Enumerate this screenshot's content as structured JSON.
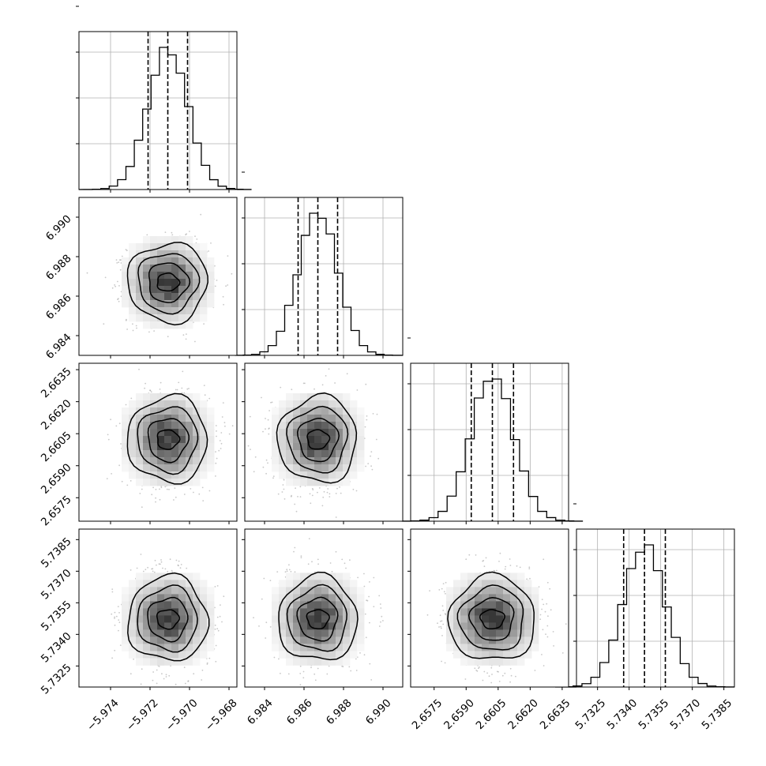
{
  "chart_data": {
    "type": "corner",
    "grid": true,
    "parameters": [
      {
        "median": -5.9711,
        "sigma": 0.00101,
        "range": [
          -5.9756,
          -5.9676
        ],
        "ticks": [
          -5.974,
          -5.972,
          -5.97,
          -5.968
        ],
        "tick_labels": [
          "−5.974",
          "−5.972",
          "−5.970",
          "−5.968"
        ],
        "quantiles": [
          -5.9721,
          -5.9711,
          -5.9701
        ]
      },
      {
        "median": 6.9867,
        "sigma": 0.001,
        "range": [
          6.983,
          6.991
        ],
        "ticks": [
          6.984,
          6.986,
          6.988,
          6.99
        ],
        "tick_labels": [
          "6.984",
          "6.986",
          "6.988",
          "6.990"
        ],
        "quantiles": [
          6.9857,
          6.9867,
          6.9877
        ]
      },
      {
        "median": 2.66023,
        "sigma": 0.00101,
        "range": [
          2.6564,
          2.6638
        ],
        "ticks": [
          2.6575,
          2.659,
          2.6605,
          2.662,
          2.6635
        ],
        "tick_labels": [
          "2.6575",
          "2.6590",
          "2.6605",
          "2.6620",
          "2.6635"
        ],
        "quantiles": [
          2.65924,
          2.66023,
          2.66122
        ]
      },
      {
        "median": 5.73473,
        "sigma": 0.00101,
        "range": [
          5.7315,
          5.739
        ],
        "ticks": [
          5.7325,
          5.734,
          5.7355,
          5.737,
          5.7385
        ],
        "tick_labels": [
          "5.7325",
          "5.7340",
          "5.7355",
          "5.7370",
          "5.7385"
        ],
        "quantiles": [
          5.73374,
          5.73473,
          5.73572
        ]
      }
    ],
    "histogram_bins": 20,
    "histogram_y_ticks": 4,
    "contour_levels_sigma": [
      0.5,
      1.0,
      1.5,
      2.0
    ],
    "colors": {
      "points": "#9a9a9a",
      "density": "#000000",
      "lines": "#000000",
      "grid": "#b0b0b0"
    }
  }
}
